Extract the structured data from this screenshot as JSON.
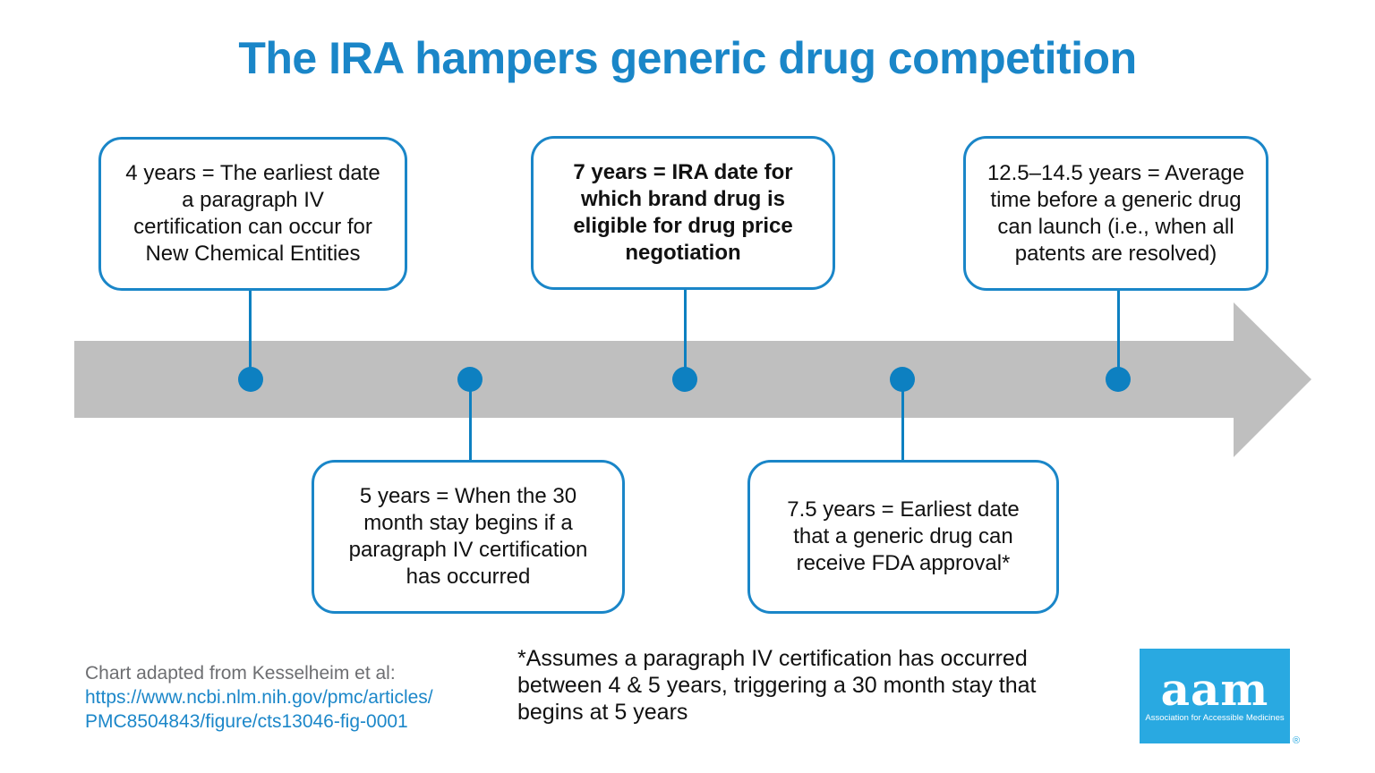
{
  "title": "The IRA hampers generic drug competition",
  "colors": {
    "accent_blue": "#1a86c8",
    "dot_blue": "#0d80c1",
    "arrow_gray": "#bfbfbf",
    "link_blue": "#1c87c9",
    "source_gray": "#6d6e71",
    "logo_blue": "#29a9e1"
  },
  "timeline": {
    "direction": "left-to-right",
    "milestones": [
      "4 years",
      "5 years",
      "7 years",
      "7.5 years",
      "12.5–14.5 years"
    ],
    "boxes": [
      {
        "id": "4-years",
        "position": "above",
        "bold": false,
        "text": "4 years = The earliest date\na paragraph IV\ncertification can occur for\nNew Chemical Entities"
      },
      {
        "id": "7-years",
        "position": "above",
        "bold": true,
        "text": "7 years = IRA date for\nwhich brand drug is\neligible for drug price\nnegotiation"
      },
      {
        "id": "12.5-14.5-years",
        "position": "above",
        "bold": false,
        "text": "12.5–14.5 years = Average\ntime before a generic drug\ncan launch (i.e., when all\npatents are resolved)"
      },
      {
        "id": "5-years",
        "position": "below",
        "bold": false,
        "text": "5 years = When the 30\nmonth stay begins if a\nparagraph IV certification\nhas occurred"
      },
      {
        "id": "7.5-years",
        "position": "below",
        "bold": false,
        "text": "7.5 years = Earliest date\nthat a generic drug can\nreceive FDA approval*"
      }
    ]
  },
  "footer": {
    "source_prefix": "Chart adapted from Kesselheim et al:",
    "source_link": "https://www.ncbi.nlm.nih.gov/pmc/articles/\nPMC8504843/figure/cts13046-fig-0001",
    "footnote": "*Assumes a paragraph IV certification has occurred\nbetween 4 & 5 years, triggering a 30 month stay that\nbegins at 5 years",
    "logo": {
      "acronym": "aam",
      "full_name": "Association for Accessible Medicines",
      "registered_mark": "®"
    }
  }
}
